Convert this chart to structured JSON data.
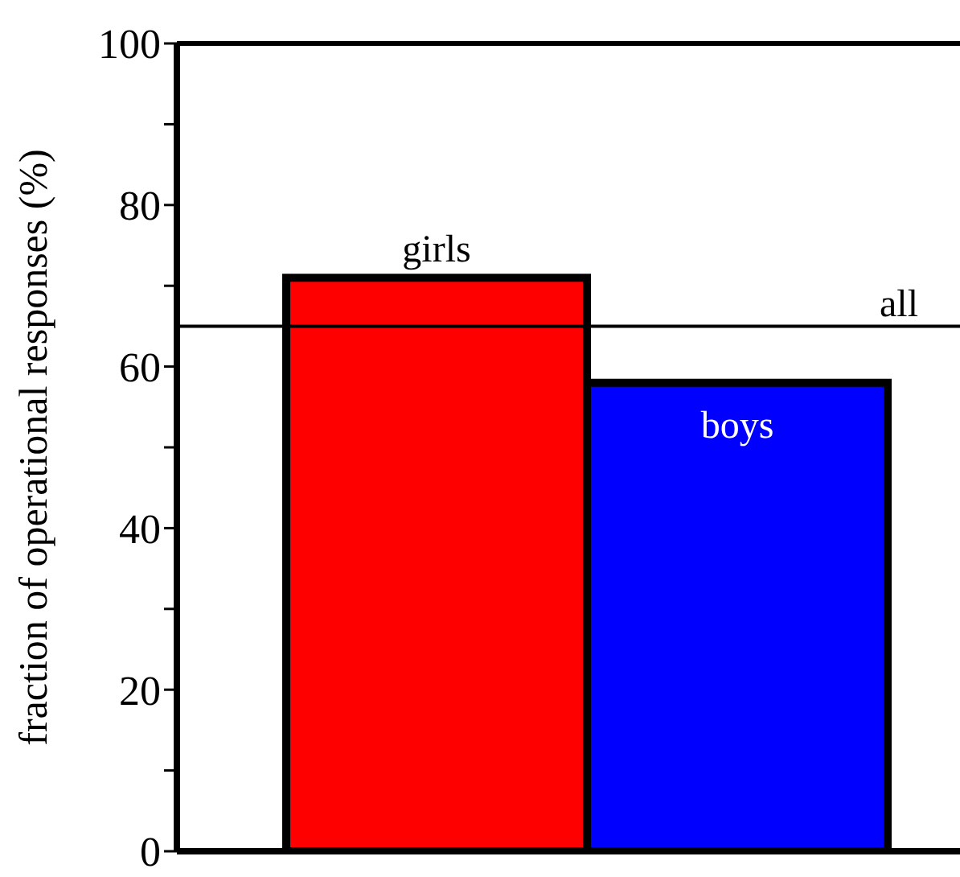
{
  "chart_data": {
    "type": "bar",
    "ylabel": "fraction of operational responses (%)",
    "categories": [
      "girls",
      "boys"
    ],
    "values": [
      71,
      58
    ],
    "colors": [
      "#ff0000",
      "#0000ff"
    ],
    "ylim": [
      0,
      100
    ],
    "yticks": [
      0,
      {
        "value": 10,
        "label": null
      },
      20,
      {
        "value": 30,
        "label": null
      },
      40,
      {
        "value": 50,
        "label": null
      },
      60,
      {
        "value": 70,
        "label": null
      },
      80,
      {
        "value": 90,
        "label": null
      },
      100
    ],
    "ref_lines": [
      {
        "axis": "y",
        "value": 65,
        "label": "all",
        "color": "#000000"
      }
    ],
    "tick_labels": "y"
  }
}
